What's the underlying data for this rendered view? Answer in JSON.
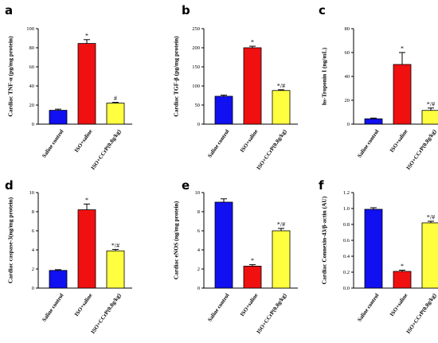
{
  "categories": [
    "Saline control",
    "ISO+saline",
    "ISO+CCrP(0.8g/kg)"
  ],
  "colors": {
    "bar1": "#1010f0",
    "bar2": "#f01010",
    "bar3": "#ffff40"
  },
  "chart_data": [
    {
      "type": "bar",
      "panel": "a",
      "ylabel": "Cardiac TNF-α (pg/mg protein)",
      "ylim": [
        0,
        100
      ],
      "ticks": [
        0,
        20,
        40,
        60,
        80,
        100
      ],
      "categories": [
        "Saline control",
        "ISO+saline",
        "ISO+CCrP(0.8g/kg)"
      ],
      "values": [
        14.5,
        84.5,
        22
      ],
      "errors": [
        1.2,
        4.0,
        0.8
      ],
      "labels": [
        "",
        "*",
        "#"
      ]
    },
    {
      "type": "bar",
      "panel": "b",
      "ylabel": "Cardiac TGF-β (pg/mg protein)",
      "ylim": [
        0,
        250
      ],
      "ticks": [
        0,
        50,
        100,
        150,
        200,
        250
      ],
      "categories": [
        "Saline control",
        "ISO+saline",
        "ISO+CCrP(0.8g/kg)"
      ],
      "values": [
        73,
        200,
        88
      ],
      "errors": [
        3,
        4,
        2
      ],
      "labels": [
        "",
        "*",
        "*/#"
      ]
    },
    {
      "type": "bar",
      "panel": "c",
      "ylabel": "hs-Troponin I (ng/mL)",
      "ylim": [
        0,
        80
      ],
      "ticks": [
        0,
        20,
        40,
        60,
        80
      ],
      "categories": [
        "Saline control",
        "ISO+saline",
        "ISO+CCrP(0.8g/kg)"
      ],
      "values": [
        4.5,
        50,
        11.5
      ],
      "errors": [
        0.6,
        10,
        2
      ],
      "labels": [
        "",
        "*",
        "*/#"
      ]
    },
    {
      "type": "bar",
      "panel": "d",
      "ylabel": "Cardiac caspase-3(ng/mg protein)",
      "ylim": [
        0,
        10
      ],
      "ticks": [
        0,
        2,
        4,
        6,
        8,
        10
      ],
      "categories": [
        "Saline control",
        "ISO+saline",
        "ISO+CCrP(0.8g/kg)"
      ],
      "values": [
        1.85,
        8.2,
        3.9
      ],
      "errors": [
        0.08,
        0.6,
        0.15
      ],
      "labels": [
        "",
        "*",
        "*/#"
      ]
    },
    {
      "type": "bar",
      "panel": "e",
      "ylabel": "Cardiac eNOS (ng/mg protein)",
      "ylim": [
        0,
        10
      ],
      "ticks": [
        0,
        2,
        4,
        6,
        8,
        10
      ],
      "categories": [
        "Saline control",
        "ISO+saline",
        "ISO+CCrP(0.8g/kg)"
      ],
      "values": [
        9.0,
        2.3,
        6.0
      ],
      "errors": [
        0.35,
        0.15,
        0.25
      ],
      "labels": [
        "",
        "*",
        "*/#"
      ]
    },
    {
      "type": "bar",
      "panel": "f",
      "ylabel": "Cardiac Connexin-43/β-actin (AU)",
      "ylim": [
        0,
        1.2
      ],
      "ticks": [
        "0.0",
        "0.2",
        "0.4",
        "0.6",
        "0.8",
        "1.0",
        "1.2"
      ],
      "categories": [
        "Saline control",
        "ISO+saline",
        "ISO+CCrP(0.8g/kg)"
      ],
      "values": [
        0.99,
        0.21,
        0.82
      ],
      "errors": [
        0.02,
        0.015,
        0.02
      ],
      "labels": [
        "",
        "*",
        "*/#"
      ]
    }
  ]
}
